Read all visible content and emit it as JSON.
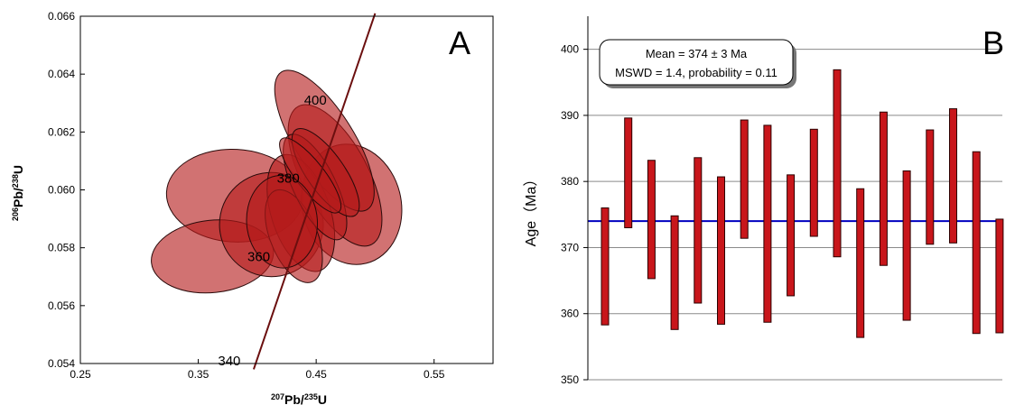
{
  "chart_data": [
    {
      "type": "scatter",
      "subtype": "concordia-ellipses",
      "panel_label": "A",
      "xlabel": {
        "iso": "207",
        "sym": "Pb/",
        "iso2": "235",
        "sym2": "U"
      },
      "ylabel": {
        "iso": "206",
        "sym": "Pb/",
        "iso2": "238",
        "sym2": "U"
      },
      "xlim": [
        0.25,
        0.6
      ],
      "ylim": [
        0.054,
        0.066
      ],
      "xticks": [
        "0.25",
        "0.35",
        "0.45",
        "0.55"
      ],
      "yticks": [
        "0.054",
        "0.056",
        "0.058",
        "0.060",
        "0.062",
        "0.064",
        "0.066"
      ],
      "concordia_labels": [
        {
          "age": "340",
          "x": 0.405,
          "y": 0.0541
        },
        {
          "age": "360",
          "x": 0.43,
          "y": 0.0577
        },
        {
          "age": "380",
          "x": 0.455,
          "y": 0.0604
        },
        {
          "age": "400",
          "x": 0.478,
          "y": 0.0631
        }
      ],
      "ellipses": [
        {
          "cx": 0.381,
          "cy": 0.0598,
          "rx": 0.058,
          "ry": 0.0016,
          "rot": -3
        },
        {
          "cx": 0.362,
          "cy": 0.0577,
          "rx": 0.052,
          "ry": 0.00125,
          "rot": 6
        },
        {
          "cx": 0.412,
          "cy": 0.0588,
          "rx": 0.044,
          "ry": 0.0018,
          "rot": 10
        },
        {
          "cx": 0.48,
          "cy": 0.0595,
          "rx": 0.042,
          "ry": 0.0021,
          "rot": 14
        },
        {
          "cx": 0.466,
          "cy": 0.0605,
          "rx": 0.028,
          "ry": 0.0027,
          "rot": 28
        },
        {
          "cx": 0.457,
          "cy": 0.0617,
          "rx": 0.025,
          "ry": 0.0028,
          "rot": 32
        },
        {
          "cx": 0.437,
          "cy": 0.0592,
          "rx": 0.025,
          "ry": 0.0021,
          "rot": 18
        },
        {
          "cx": 0.431,
          "cy": 0.0584,
          "rx": 0.02,
          "ry": 0.0017,
          "rot": 22
        },
        {
          "cx": 0.449,
          "cy": 0.0601,
          "rx": 0.018,
          "ry": 0.002,
          "rot": 26
        },
        {
          "cx": 0.458,
          "cy": 0.0606,
          "rx": 0.016,
          "ry": 0.0018,
          "rot": 35
        },
        {
          "cx": 0.445,
          "cy": 0.0605,
          "rx": 0.012,
          "ry": 0.0016,
          "rot": 38
        },
        {
          "cx": 0.421,
          "cy": 0.0589,
          "rx": 0.03,
          "ry": 0.0016,
          "rot": 4
        }
      ],
      "colors": {
        "fill": "#b51b1b",
        "stroke": "#2a0a0a",
        "concordia": "#6b0f0f"
      }
    },
    {
      "type": "bar",
      "subtype": "age-range-bars",
      "panel_label": "B",
      "ylabel": "Age（Ma）",
      "ylim": [
        350,
        405
      ],
      "yticks": [
        "350",
        "360",
        "370",
        "380",
        "390",
        "400"
      ],
      "mean": 374,
      "annotation": [
        "Mean = 374 ± 3 Ma",
        "MSWD = 1.4, probability = 0.11"
      ],
      "bars": [
        [
          358.3,
          376.0
        ],
        [
          373.0,
          389.6
        ],
        [
          365.3,
          383.2
        ],
        [
          357.6,
          374.8
        ],
        [
          361.6,
          383.6
        ],
        [
          358.4,
          380.7
        ],
        [
          371.4,
          389.3
        ],
        [
          358.7,
          388.5
        ],
        [
          362.7,
          381.0
        ],
        [
          371.7,
          387.9
        ],
        [
          368.6,
          396.9
        ],
        [
          356.4,
          378.9
        ],
        [
          367.3,
          390.5
        ],
        [
          359.0,
          381.6
        ],
        [
          370.5,
          387.8
        ],
        [
          370.7,
          391.0
        ],
        [
          357.0,
          384.5
        ],
        [
          357.1,
          374.3
        ]
      ],
      "colors": {
        "bar": "#c8161b",
        "bar_stroke": "#2a0000",
        "mean_line": "#0000c0",
        "grid": "#8a8a8a"
      }
    }
  ]
}
